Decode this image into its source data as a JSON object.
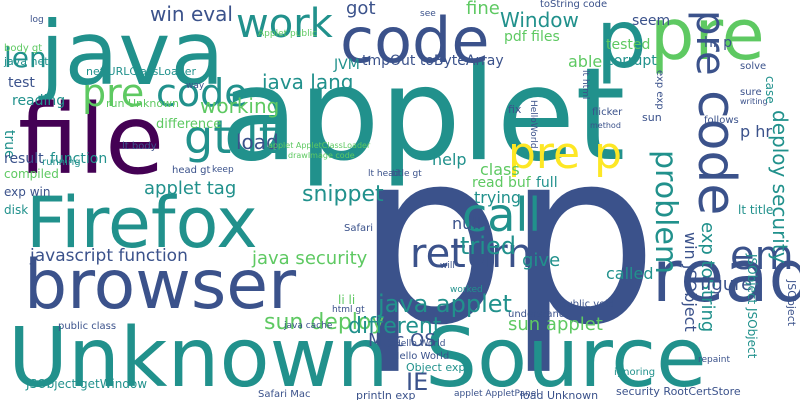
{
  "cloud": {
    "background": "#ffffff",
    "palette": [
      "#440154",
      "#3b528b",
      "#21918c",
      "#5ec962",
      "#fde725"
    ],
    "words": [
      {
        "text": "applet",
        "color": "#21918c"
      },
      {
        "text": "p",
        "color": "#3b528b"
      },
      {
        "text": "p",
        "color": "#3b528b"
      },
      {
        "text": "Unknown",
        "color": "#21918c"
      },
      {
        "text": "Source",
        "color": "#21918c"
      },
      {
        "text": "java",
        "color": "#21918c"
      },
      {
        "text": "file",
        "color": "#440154"
      },
      {
        "text": "browser",
        "color": "#3b528b"
      },
      {
        "text": "Firefox",
        "color": "#21918c"
      },
      {
        "text": "code",
        "color": "#3b528b"
      },
      {
        "text": "pre",
        "color": "#5ec962"
      },
      {
        "text": "p",
        "color": "#21918c"
      },
      {
        "text": "read",
        "color": "#3b528b"
      },
      {
        "text": "work",
        "color": "#21918c"
      },
      {
        "text": "pre",
        "color": "#5ec962"
      },
      {
        "text": "code",
        "color": "#21918c"
      },
      {
        "text": "code",
        "color": "#3b528b"
      },
      {
        "text": "call",
        "color": "#21918c"
      },
      {
        "text": "gt lt",
        "color": "#21918c"
      },
      {
        "text": "pre p",
        "color": "#fde725"
      },
      {
        "text": "return",
        "color": "#3b528b"
      },
      {
        "text": "pre",
        "color": "#3b528b"
      },
      {
        "text": "em",
        "color": "#3b528b"
      },
      {
        "text": "problem",
        "color": "#21918c"
      },
      {
        "text": "len",
        "color": "#21918c"
      },
      {
        "text": "deploy security",
        "color": "#21918c"
      },
      {
        "text": "java applet",
        "color": "#21918c"
      },
      {
        "text": "Window",
        "color": "#21918c"
      },
      {
        "text": "snippet",
        "color": "#21918c"
      },
      {
        "text": "javascript function",
        "color": "#3b528b"
      },
      {
        "text": "java lang",
        "color": "#21918c"
      },
      {
        "text": "working",
        "color": "#5ec962"
      },
      {
        "text": "win eval",
        "color": "#3b528b"
      },
      {
        "text": "tried",
        "color": "#21918c"
      },
      {
        "text": "applet tag",
        "color": "#21918c"
      },
      {
        "text": "sun deploy",
        "color": "#5ec962"
      },
      {
        "text": "different",
        "color": "#21918c"
      },
      {
        "text": "java security",
        "color": "#5ec962"
      },
      {
        "text": "load",
        "color": "#3b528b"
      },
      {
        "text": "IE",
        "color": "#3b528b"
      },
      {
        "text": "Mac OS",
        "color": "#3b528b"
      },
      {
        "text": "sun applet",
        "color": "#5ec962"
      },
      {
        "text": "exp toString",
        "color": "#21918c"
      },
      {
        "text": "win JSObject",
        "color": "#3b528b"
      },
      {
        "text": "give",
        "color": "#21918c"
      },
      {
        "text": "called",
        "color": "#21918c"
      },
      {
        "text": "figure",
        "color": "#3b528b"
      },
      {
        "text": "null",
        "color": "#3b528b"
      },
      {
        "text": "trying",
        "color": "#21918c"
      },
      {
        "text": "help",
        "color": "#21918c"
      },
      {
        "text": "class",
        "color": "#5ec962"
      },
      {
        "text": "read buf",
        "color": "#5ec962"
      },
      {
        "text": "full",
        "color": "#21918c"
      },
      {
        "text": "fine",
        "color": "#5ec962"
      },
      {
        "text": "got",
        "color": "#3b528b"
      },
      {
        "text": "able",
        "color": "#5ec962"
      },
      {
        "text": "pdf files",
        "color": "#5ec962"
      },
      {
        "text": "tmpOut toByteArray",
        "color": "#3b528b"
      },
      {
        "text": "JVM",
        "color": "#21918c"
      },
      {
        "text": "test",
        "color": "#3b528b"
      },
      {
        "text": "reading",
        "color": "#21918c"
      },
      {
        "text": "true",
        "color": "#21918c"
      },
      {
        "text": "result",
        "color": "#3b528b"
      },
      {
        "text": "function",
        "color": "#21918c"
      },
      {
        "text": "compiled",
        "color": "#5ec962"
      },
      {
        "text": "exp win",
        "color": "#3b528b"
      },
      {
        "text": "disk",
        "color": "#21918c"
      },
      {
        "text": "running",
        "color": "#21918c"
      },
      {
        "text": "difference",
        "color": "#5ec962"
      },
      {
        "text": "run Unknown",
        "color": "#5ec962"
      },
      {
        "text": "net URLClassLoader",
        "color": "#21918c"
      },
      {
        "text": "java net",
        "color": "#21918c"
      },
      {
        "text": "seem",
        "color": "#3b528b"
      },
      {
        "text": "tested",
        "color": "#5ec962"
      },
      {
        "text": "corrupt",
        "color": "#21918c"
      },
      {
        "text": "hr p",
        "color": "#3b528b"
      },
      {
        "text": "p hr",
        "color": "#3b528b"
      },
      {
        "text": "lt title",
        "color": "#21918c"
      },
      {
        "text": "JSObject getWindow",
        "color": "#21918c"
      },
      {
        "text": "Object exp",
        "color": "#21918c"
      },
      {
        "text": "Hello World",
        "color": "#3b528b"
      },
      {
        "text": "println exp",
        "color": "#3b528b"
      },
      {
        "text": "load Unknown",
        "color": "#3b528b"
      },
      {
        "text": "security RootCertStore",
        "color": "#3b528b"
      },
      {
        "text": "Safari Mac",
        "color": "#3b528b"
      },
      {
        "text": "public class",
        "color": "#3b528b"
      },
      {
        "text": "public void",
        "color": "#3b528b"
      },
      {
        "text": "understand",
        "color": "#3b528b"
      },
      {
        "text": "li li",
        "color": "#5ec962"
      },
      {
        "text": "lt body",
        "color": "#3b528b"
      },
      {
        "text": "head gt",
        "color": "#3b528b"
      },
      {
        "text": "JSObject JSObject",
        "color": "#21918c"
      },
      {
        "text": "JSObject",
        "color": "#3b528b"
      },
      {
        "text": "toString code",
        "color": "#3b528b"
      },
      {
        "text": "body gt",
        "color": "#5ec962"
      },
      {
        "text": "Safari",
        "color": "#3b528b"
      },
      {
        "text": "fix",
        "color": "#3b528b"
      },
      {
        "text": "sun",
        "color": "#3b528b"
      },
      {
        "text": "sure",
        "color": "#3b528b"
      },
      {
        "text": "writing",
        "color": "#3b528b"
      },
      {
        "text": "follows",
        "color": "#3b528b"
      },
      {
        "text": "solve",
        "color": "#3b528b"
      },
      {
        "text": "exp exp",
        "color": "#3b528b"
      },
      {
        "text": "case",
        "color": "#21918c"
      },
      {
        "text": "method",
        "color": "#3b528b"
      },
      {
        "text": "flicker",
        "color": "#3b528b"
      },
      {
        "text": "HelloWorld",
        "color": "#3b528b"
      },
      {
        "text": "lt html",
        "color": "#3b528b"
      },
      {
        "text": "title gt",
        "color": "#3b528b"
      },
      {
        "text": "lt head",
        "color": "#3b528b"
      },
      {
        "text": "html gt",
        "color": "#3b528b"
      },
      {
        "text": "repaint",
        "color": "#3b528b"
      },
      {
        "text": "ignoring",
        "color": "#21918c"
      },
      {
        "text": "java cache",
        "color": "#3b528b"
      },
      {
        "text": "Hello World",
        "color": "#3b528b"
      },
      {
        "text": "keep",
        "color": "#3b528b"
      },
      {
        "text": "applet AppletPanel",
        "color": "#3b528b"
      },
      {
        "text": "way",
        "color": "#3b528b"
      },
      {
        "text": "log",
        "color": "#3b528b"
      },
      {
        "text": "see",
        "color": "#3b528b"
      },
      {
        "text": "worked",
        "color": "#21918c"
      },
      {
        "text": "will",
        "color": "#3b528b"
      },
      {
        "text": "Applet public",
        "color": "#5ec962"
      },
      {
        "text": "drawImage code",
        "color": "#5ec962"
      },
      {
        "text": "applet AppletClassLoader",
        "color": "#5ec962"
      }
    ]
  }
}
